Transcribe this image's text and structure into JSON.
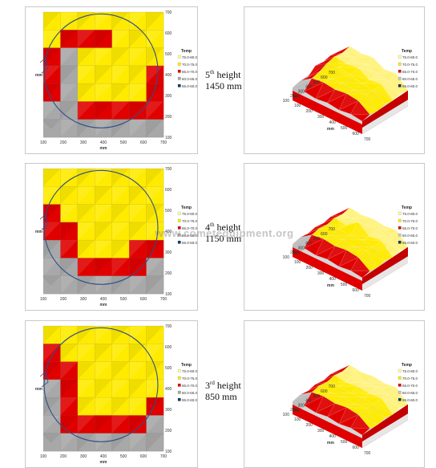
{
  "chart_data": [
    {
      "type": "heatmap",
      "view": "top",
      "height_label": {
        "ordinal": "5",
        "suffix": "th",
        "word": "height",
        "value": "1450 mm"
      },
      "x_ticks": [
        "100",
        "200",
        "300",
        "400",
        "500",
        "600",
        "700"
      ],
      "y_ticks": [
        "100",
        "200",
        "300",
        "400",
        "500",
        "600",
        "700"
      ],
      "xlabel": "mm",
      "ylabel": "mm",
      "legend_title": "Temp",
      "legend": [
        {
          "label": "75.0-80.0",
          "color": "#FFFFA0"
        },
        {
          "label": "70.0-75.0",
          "color": "#FFEB00"
        },
        {
          "label": "65.0-70.0",
          "color": "#E00000"
        },
        {
          "label": "60.0-65.0",
          "color": "#A8A8A8"
        },
        {
          "label": "55.0-60.0",
          "color": "#0A3A66"
        }
      ],
      "grid": [
        [
          1,
          1,
          1,
          1,
          1,
          1,
          1
        ],
        [
          1,
          2,
          2,
          2,
          1,
          1,
          1
        ],
        [
          2,
          3,
          1,
          1,
          1,
          1,
          1
        ],
        [
          2,
          3,
          1,
          1,
          1,
          1,
          2
        ],
        [
          2,
          3,
          1,
          1,
          1,
          1,
          2
        ],
        [
          3,
          3,
          2,
          2,
          2,
          2,
          2
        ],
        [
          3,
          3,
          3,
          3,
          3,
          3,
          3
        ]
      ]
    },
    {
      "type": "surface",
      "view": "3d",
      "x_ticks": [
        "100",
        "200",
        "300",
        "400",
        "500",
        "600",
        "700"
      ],
      "y_ticks": [
        "100",
        "200",
        "300",
        "400",
        "500",
        "600",
        "700"
      ],
      "xlabel": "mm",
      "ylabel": "mm",
      "legend_title": "Temp",
      "legend": [
        {
          "label": "75.0-80.0",
          "color": "#FFFFA0"
        },
        {
          "label": "70.0-75.0",
          "color": "#FFEB00"
        },
        {
          "label": "65.0-70.0",
          "color": "#E00000"
        },
        {
          "label": "60.0-65.0",
          "color": "#C8C8C8"
        },
        {
          "label": "55.0-60.0",
          "color": "#0A3A66"
        }
      ]
    },
    {
      "type": "heatmap",
      "view": "top",
      "height_label": {
        "ordinal": "4",
        "suffix": "th",
        "word": "height",
        "value": "1150 mm"
      },
      "x_ticks": [
        "100",
        "200",
        "300",
        "400",
        "500",
        "600",
        "700"
      ],
      "y_ticks": [
        "100",
        "200",
        "300",
        "400",
        "500",
        "600",
        "700"
      ],
      "xlabel": "mm",
      "ylabel": "mm",
      "legend_title": "Temp",
      "legend": [
        {
          "label": "75.0-80.0",
          "color": "#FFFFA0"
        },
        {
          "label": "70.0-75.0",
          "color": "#FFEB00"
        },
        {
          "label": "65.0-70.0",
          "color": "#E00000"
        },
        {
          "label": "60.0-65.0",
          "color": "#A8A8A8"
        },
        {
          "label": "55.0-60.0",
          "color": "#0A3A66"
        }
      ],
      "grid": [
        [
          1,
          1,
          1,
          1,
          1,
          1,
          1
        ],
        [
          1,
          1,
          1,
          1,
          1,
          1,
          1
        ],
        [
          2,
          1,
          1,
          1,
          1,
          1,
          1
        ],
        [
          2,
          2,
          1,
          1,
          1,
          1,
          1
        ],
        [
          3,
          2,
          1,
          1,
          1,
          2,
          2
        ],
        [
          3,
          3,
          2,
          2,
          2,
          2,
          3
        ],
        [
          3,
          3,
          3,
          3,
          3,
          3,
          3
        ]
      ]
    },
    {
      "type": "surface",
      "view": "3d",
      "x_ticks": [
        "100",
        "200",
        "300",
        "400",
        "500",
        "600",
        "700"
      ],
      "y_ticks": [
        "100",
        "200",
        "300",
        "400",
        "500",
        "600",
        "700"
      ],
      "xlabel": "mm",
      "ylabel": "mm",
      "legend_title": "Temp",
      "legend": [
        {
          "label": "75.0-80.0",
          "color": "#FFFFA0"
        },
        {
          "label": "70.0-75.0",
          "color": "#FFEB00"
        },
        {
          "label": "65.0-70.0",
          "color": "#E00000"
        },
        {
          "label": "60.0-65.0",
          "color": "#C8C8C8"
        },
        {
          "label": "55.0-60.0",
          "color": "#0A3A66"
        }
      ]
    },
    {
      "type": "heatmap",
      "view": "top",
      "height_label": {
        "ordinal": "3",
        "suffix": "rd",
        "word": "height",
        "value": "850 mm"
      },
      "x_ticks": [
        "100",
        "200",
        "300",
        "400",
        "500",
        "600",
        "700"
      ],
      "y_ticks": [
        "100",
        "200",
        "300",
        "400",
        "500",
        "600",
        "700"
      ],
      "xlabel": "mm",
      "ylabel": "mm",
      "legend_title": "Temp",
      "legend": [
        {
          "label": "75.0-80.0",
          "color": "#FFFFA0"
        },
        {
          "label": "70.0-75.0",
          "color": "#FFEB00"
        },
        {
          "label": "65.0-70.0",
          "color": "#E00000"
        },
        {
          "label": "60.0-65.0",
          "color": "#A8A8A8"
        },
        {
          "label": "55.0-60.0",
          "color": "#0A3A66"
        }
      ],
      "grid": [
        [
          1,
          1,
          1,
          1,
          1,
          1,
          1
        ],
        [
          2,
          1,
          1,
          1,
          1,
          1,
          1
        ],
        [
          2,
          2,
          1,
          1,
          1,
          1,
          1
        ],
        [
          3,
          2,
          1,
          1,
          1,
          1,
          1
        ],
        [
          3,
          2,
          1,
          1,
          1,
          1,
          2
        ],
        [
          3,
          2,
          2,
          2,
          2,
          2,
          3
        ],
        [
          3,
          3,
          3,
          3,
          3,
          3,
          3
        ]
      ]
    },
    {
      "type": "surface",
      "view": "3d",
      "x_ticks": [
        "100",
        "200",
        "300",
        "400",
        "500",
        "600",
        "700"
      ],
      "y_ticks": [
        "100",
        "200",
        "300",
        "400",
        "500",
        "600",
        "700"
      ],
      "xlabel": "mm",
      "ylabel": "mm",
      "legend_title": "Temp",
      "legend": [
        {
          "label": "75.0-80.0",
          "color": "#FFFFA0"
        },
        {
          "label": "70.0-75.0",
          "color": "#FFEB00"
        },
        {
          "label": "65.0-70.0",
          "color": "#E00000"
        },
        {
          "label": "60.0-65.0",
          "color": "#C8C8C8"
        },
        {
          "label": "55.0-60.0",
          "color": "#0A3A66"
        }
      ]
    }
  ],
  "watermark": "www.cometequipment.org"
}
